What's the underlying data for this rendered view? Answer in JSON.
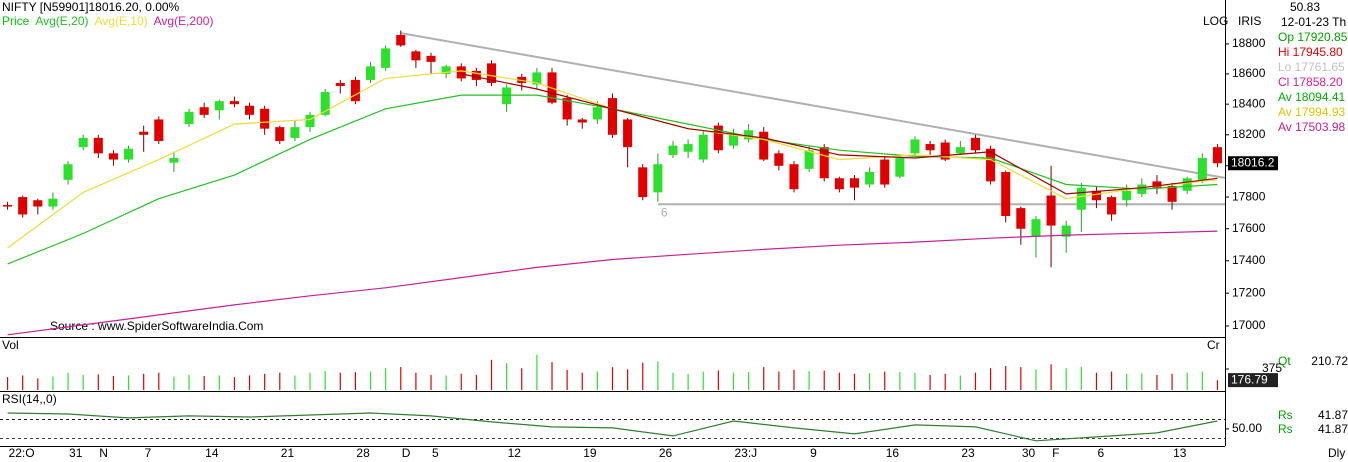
{
  "chart_data": [
    {
      "type": "candlestick",
      "title": "NIFTY [N59901]18016.20, 0.00%",
      "categories": [
        "22:O",
        null,
        null,
        null,
        "31",
        null,
        "N",
        null,
        null,
        "7",
        null,
        null,
        null,
        "14",
        null,
        null,
        null,
        null,
        "21",
        null,
        null,
        null,
        null,
        "28",
        null,
        null,
        "D",
        null,
        "5",
        null,
        null,
        null,
        null,
        "12",
        null,
        null,
        null,
        null,
        "19",
        null,
        null,
        null,
        null,
        "26",
        null,
        null,
        null,
        null,
        "23:J",
        null,
        null,
        null,
        null,
        "9",
        null,
        null,
        null,
        null,
        "16",
        null,
        null,
        null,
        null,
        "23",
        null,
        null,
        null,
        "30",
        null,
        "F",
        null,
        null,
        "6",
        null,
        null,
        null,
        null,
        "13",
        null,
        null,
        null
      ],
      "xlim": [
        -0.5,
        80.5
      ],
      "ylim": [
        16933,
        19097
      ],
      "log_scale": true,
      "scale_label": "LOG",
      "axis_label": "IRIS",
      "yticks": [
        17000,
        17200,
        17400,
        17600,
        17800,
        18000,
        18200,
        18400,
        18600,
        18800
      ],
      "source": "Source : www.SpiderSoftwareIndia.Com",
      "series": [
        {
          "name": "Price",
          "type": "candlestick",
          "color": "#00c800",
          "up_color": "#2ee02e",
          "down_color": "#e00000",
          "open": [
            17750,
            17800,
            17780,
            17740,
            17910,
            18120,
            18180,
            18080,
            18040,
            18220,
            18300,
            18020,
            18270,
            18380,
            18360,
            18420,
            18390,
            18370,
            18250,
            18180,
            18250,
            18330,
            18540,
            18560,
            18560,
            18640,
            18860,
            18750,
            18720,
            18600,
            18650,
            18620,
            18670,
            18400,
            18580,
            18530,
            18610,
            18440,
            18300,
            18300,
            18440,
            18300,
            17990,
            17830,
            18070,
            18090,
            18040,
            18260,
            18130,
            18170,
            18220,
            18080,
            18010,
            17980,
            18120,
            17920,
            17920,
            17880,
            18040,
            17930,
            18080,
            18140,
            18150,
            18080,
            18180,
            18110,
            17960,
            17730,
            17550,
            17810,
            17550,
            17720,
            17840,
            17800,
            17780,
            17820,
            17900,
            17870,
            17840,
            17910,
            18120
          ],
          "high": [
            17770,
            17810,
            17790,
            17830,
            18030,
            18200,
            18200,
            18100,
            18130,
            18260,
            18320,
            18090,
            18370,
            18410,
            18430,
            18450,
            18410,
            18390,
            18260,
            18290,
            18350,
            18500,
            18560,
            18580,
            18680,
            18790,
            18890,
            18760,
            18740,
            18660,
            18670,
            18640,
            18690,
            18530,
            18600,
            18640,
            18640,
            18460,
            18310,
            18420,
            18470,
            18310,
            18010,
            18080,
            18160,
            18170,
            18230,
            18280,
            18240,
            18270,
            18250,
            18100,
            18030,
            18130,
            18140,
            17930,
            17940,
            17990,
            18060,
            18070,
            18190,
            18160,
            18170,
            18160,
            18200,
            18130,
            17970,
            17740,
            17680,
            18000,
            17650,
            17890,
            17870,
            17810,
            17880,
            17920,
            17940,
            17890,
            17930,
            18080,
            18140
          ],
          "low": [
            17720,
            17670,
            17690,
            17720,
            17880,
            18100,
            18050,
            18000,
            18020,
            18090,
            18140,
            17960,
            18250,
            18310,
            18300,
            18380,
            18300,
            18200,
            18140,
            18160,
            18220,
            18320,
            18470,
            18400,
            18540,
            18620,
            18780,
            18640,
            18600,
            18570,
            18550,
            18520,
            18520,
            18350,
            18490,
            18500,
            18400,
            18260,
            18240,
            18270,
            18180,
            17990,
            17780,
            17770,
            18050,
            18050,
            18020,
            18080,
            18110,
            18150,
            18030,
            17970,
            17830,
            17960,
            17900,
            17830,
            17780,
            17860,
            17860,
            17920,
            18060,
            18070,
            18030,
            18070,
            18080,
            17880,
            17640,
            17500,
            17420,
            17360,
            17450,
            17580,
            17730,
            17650,
            17740,
            17800,
            17820,
            17720,
            17820,
            17890,
            17990
          ],
          "close": [
            17740,
            17690,
            17740,
            17790,
            18010,
            18180,
            18080,
            18040,
            18110,
            18200,
            18160,
            18050,
            18350,
            18330,
            18420,
            18400,
            18330,
            18240,
            18160,
            18250,
            18330,
            18480,
            18520,
            18420,
            18650,
            18770,
            18790,
            18690,
            18680,
            18650,
            18570,
            18560,
            18540,
            18510,
            18540,
            18610,
            18410,
            18300,
            18280,
            18380,
            18200,
            18120,
            17800,
            18010,
            18130,
            18140,
            18200,
            18100,
            18200,
            18230,
            18040,
            18000,
            17850,
            18100,
            17920,
            17850,
            17860,
            17960,
            17880,
            18050,
            18170,
            18100,
            18040,
            18120,
            18100,
            17900,
            17680,
            17600,
            17660,
            17620,
            17620,
            17860,
            17780,
            17690,
            17840,
            17880,
            17860,
            17770,
            17920,
            18050,
            18016.2
          ]
        },
        {
          "name": "Avg(E,20)",
          "type": "line",
          "color": "#22c022",
          "x": [
            0,
            5,
            10,
            15,
            20,
            25,
            30,
            35,
            40,
            45,
            50,
            55,
            60,
            65,
            70,
            75,
            80
          ],
          "values": [
            17380,
            17570,
            17790,
            17940,
            18170,
            18370,
            18460,
            18460,
            18370,
            18270,
            18170,
            18100,
            18060,
            18050,
            17880,
            17850,
            17880
          ]
        },
        {
          "name": "Avg(E,10)",
          "type": "line",
          "color": "#eedd33",
          "x": [
            0,
            5,
            10,
            15,
            20,
            25,
            30,
            35,
            40,
            45,
            50,
            55,
            60,
            65,
            70,
            75,
            80
          ],
          "values": [
            17480,
            17830,
            18040,
            18270,
            18300,
            18570,
            18620,
            18540,
            18370,
            18240,
            18170,
            18040,
            18070,
            18040,
            17790,
            17860,
            17910
          ]
        },
        {
          "name": "Avg(E,200)",
          "type": "line",
          "color": "#c8209a",
          "x": [
            0,
            5,
            10,
            15,
            20,
            25,
            30,
            35,
            40,
            45,
            50,
            55,
            60,
            65,
            70,
            75,
            80
          ],
          "values": [
            16946,
            17006,
            17067,
            17128,
            17184,
            17233,
            17296,
            17359,
            17408,
            17440,
            17471,
            17497,
            17516,
            17541,
            17560,
            17572,
            17585
          ]
        },
        {
          "type": "line",
          "color": "#a00000",
          "x": [
            30,
            35,
            40,
            45,
            50,
            55,
            60,
            65,
            70,
            75,
            80
          ],
          "values": [
            18600,
            18500,
            18370,
            18240,
            18180,
            18070,
            18050,
            18090,
            17820,
            17860,
            17920
          ]
        }
      ],
      "trendlines": [
        {
          "color": "#b0b0b0",
          "x": [
            26,
            80.5
          ],
          "values": [
            18873,
            17922
          ]
        },
        {
          "color": "#b0b0b0",
          "x": [
            43,
            80.5
          ],
          "values": [
            17755,
            17755
          ],
          "label": "6"
        }
      ]
    },
    {
      "type": "bar",
      "title": "Vol",
      "corner_label": "Cr",
      "values": [
        230,
        260,
        210,
        240,
        310,
        270,
        280,
        250,
        260,
        290,
        310,
        240,
        270,
        250,
        260,
        230,
        260,
        290,
        310,
        260,
        310,
        340,
        310,
        320,
        330,
        390,
        410,
        310,
        270,
        260,
        290,
        270,
        540,
        480,
        390,
        630,
        500,
        360,
        310,
        330,
        410,
        370,
        490,
        510,
        310,
        290,
        330,
        350,
        310,
        320,
        410,
        330,
        360,
        340,
        350,
        310,
        290,
        300,
        330,
        320,
        310,
        270,
        290,
        260,
        310,
        390,
        430,
        410,
        370,
        460,
        390,
        410,
        310,
        330,
        290,
        300,
        270,
        290,
        310,
        330,
        176.79
      ],
      "ylim": [
        0,
        930
      ],
      "yticks": [
        375
      ]
    },
    {
      "type": "line",
      "title": "RSI(14,,0)",
      "color": "#2f7f2f",
      "x": [
        0,
        4,
        8,
        12,
        16,
        20,
        24,
        28,
        32,
        36,
        40,
        44,
        48,
        52,
        56,
        60,
        64,
        68,
        72,
        76,
        80
      ],
      "values": [
        66.8,
        65.8,
        61.6,
        63.7,
        62.6,
        64.7,
        66.8,
        63.7,
        57.4,
        52.1,
        51.1,
        42.6,
        58.4,
        51.1,
        44.7,
        54.2,
        52.1,
        37.4,
        41.6,
        45.8,
        58.4
      ],
      "ylim": [
        33,
        89
      ],
      "yticks": [
        {
          "value": 50,
          "label": "50.00"
        }
      ],
      "ref_lines": [
        60,
        40
      ]
    }
  ],
  "info_panel": {
    "top": "50.83",
    "date": "12-01-23 Th",
    "items": [
      {
        "text": "Op 17920.85",
        "color": "#00a000"
      },
      {
        "text": "Hi 17945.80",
        "color": "#e00000"
      },
      {
        "text": "Lo 17761.65",
        "color": "#c0c0c0"
      },
      {
        "text": "Cl 17858.20",
        "color": "#d02090"
      },
      {
        "text": "Av 18094.41",
        "color": "#00b000"
      },
      {
        "text": "Av 17994.93",
        "color": "#d8c800"
      },
      {
        "text": "Av 17503.98",
        "color": "#c02090"
      }
    ],
    "volume": {
      "label": "Qt",
      "value": "210.72"
    },
    "rsi": [
      {
        "label": "Rs",
        "value": "41.87"
      },
      {
        "label": "Rs",
        "value": "41.87"
      }
    ],
    "period": "Dly"
  }
}
